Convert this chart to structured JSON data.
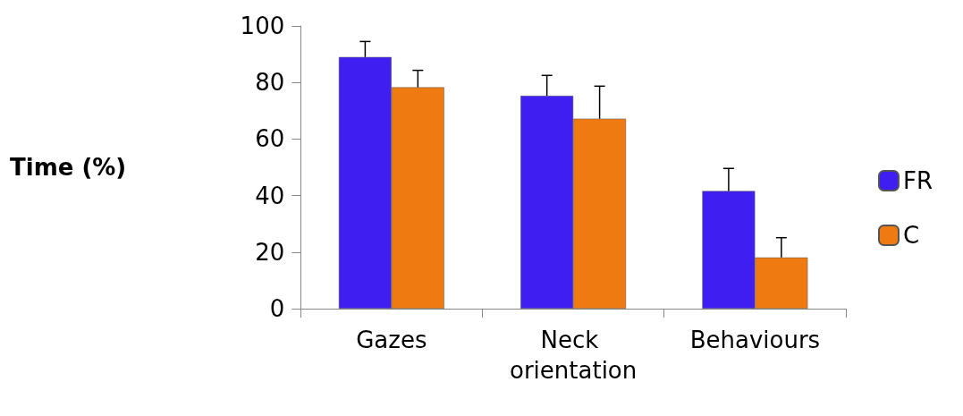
{
  "chart_data": {
    "type": "bar",
    "ylabel": "Time (%)",
    "categories": [
      "Gazes",
      "Neck orientation",
      "Behaviours"
    ],
    "series": [
      {
        "name": "FR",
        "color": "#3f1ef2",
        "values": [
          89,
          75.3,
          41.6
        ],
        "errors": [
          [
            89,
            94.5
          ],
          [
            75.3,
            82.5
          ],
          [
            41.6,
            49.6
          ]
        ]
      },
      {
        "name": "C",
        "color": "#f07a12",
        "values": [
          78.3,
          67.2,
          18.1
        ],
        "errors": [
          [
            78.3,
            84.3
          ],
          [
            67.2,
            78.7
          ],
          [
            18.1,
            25.1
          ]
        ]
      }
    ],
    "ylim": [
      0,
      100
    ],
    "yticks": [
      0,
      20,
      40,
      60,
      80,
      100
    ],
    "grid": false,
    "legend": "right"
  }
}
